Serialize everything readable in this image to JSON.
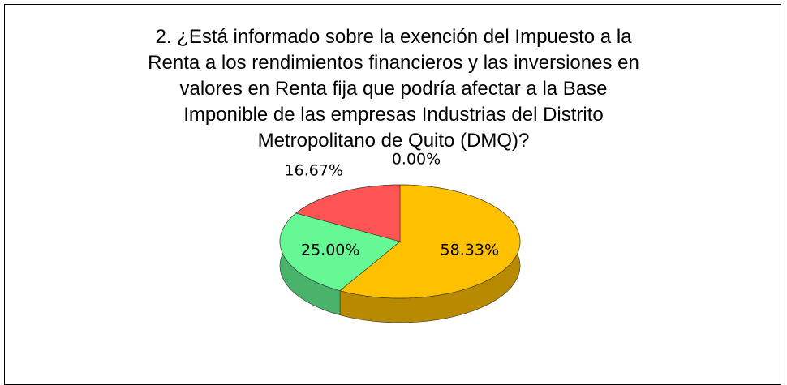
{
  "chart_data": {
    "type": "pie3d",
    "title": "2. ¿Está informado sobre la exención del Impuesto a la\nRenta a los rendimientos financieros y las inversiones en\nvalores en Renta fija que podría afectar a la Base\nImponible de las empresas Industrias del Distrito\nMetropolitano de Quito (DMQ)?",
    "values": [
      58.33,
      25.0,
      16.67,
      0.0
    ],
    "value_labels": [
      "58.33%",
      "25.00%",
      "16.67%",
      "0.00%"
    ],
    "colors": [
      "#FFC000",
      "#66F894",
      "#FF5454",
      "#4F81BD"
    ]
  }
}
